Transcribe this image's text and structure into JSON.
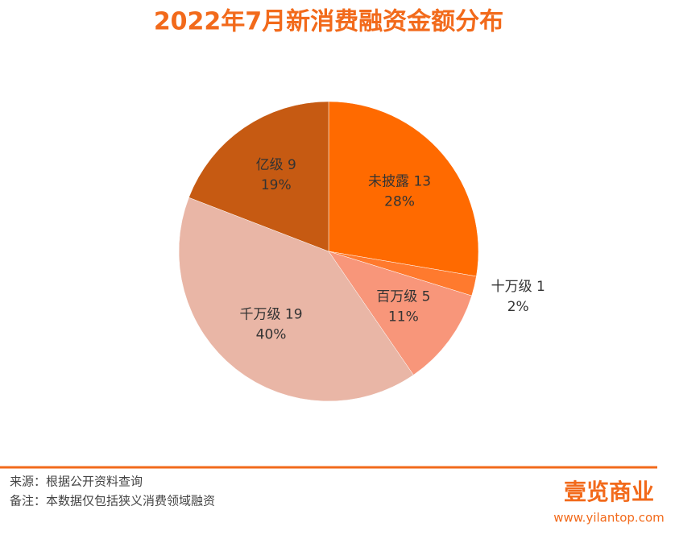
{
  "chart_data": {
    "type": "pie",
    "title": "2022年7月新消费融资金额分布",
    "categories": [
      "未披露",
      "十万级",
      "百万级",
      "千万级",
      "亿级"
    ],
    "values": [
      13,
      1,
      5,
      19,
      9
    ],
    "percentages": [
      28,
      2,
      11,
      40,
      19
    ],
    "percentage_labels": [
      "28%",
      "2%",
      "11%",
      "40%",
      "19%"
    ],
    "colors": [
      "#ff6a00",
      "#ff7a2e",
      "#f8967a",
      "#e9b6a6",
      "#c65a12"
    ]
  },
  "footer": {
    "source": "来源：根据公开资料查询",
    "note": "备注：本数据仅包括狭义消费领域融资",
    "brand": "壹览商业",
    "website": "www.yilantop.com"
  }
}
